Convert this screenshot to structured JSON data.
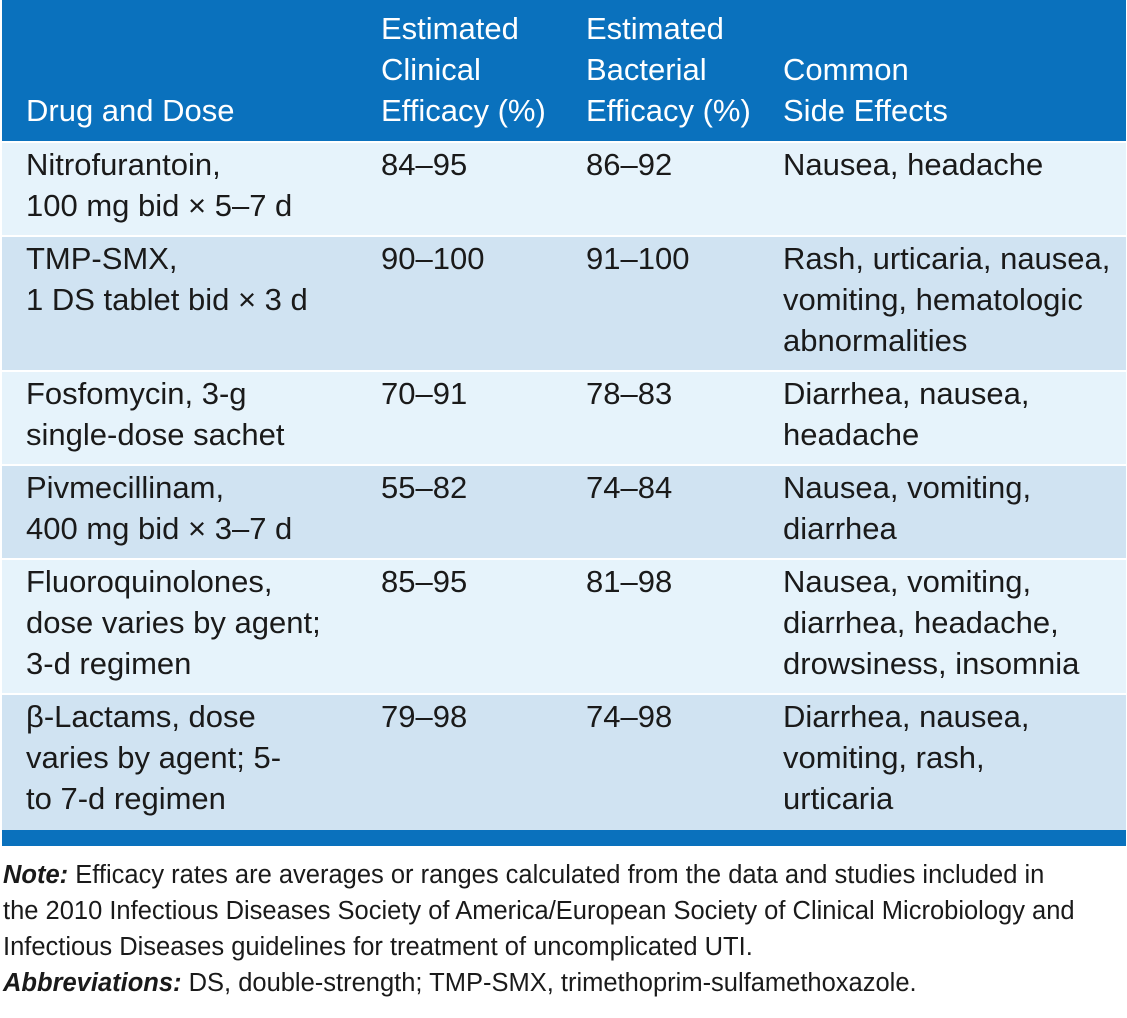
{
  "table": {
    "headers": [
      "Drug and Dose",
      "Estimated Clinical Efficacy (%)",
      "Estimated Bacterial Efficacy (%)",
      "Common Side Effects"
    ],
    "header_lines": {
      "h1": [
        "Drug and Dose"
      ],
      "h2": [
        "Estimated",
        "Clinical",
        "Efficacy (%)"
      ],
      "h3": [
        "Estimated",
        "Bacterial",
        "Efficacy (%)"
      ],
      "h4": [
        "Common",
        "Side Effects"
      ]
    },
    "rows": [
      {
        "drug_lines": [
          "Nitrofurantoin,",
          "100 mg bid × 5–7 d"
        ],
        "clinical": "84–95",
        "bacterial": "86–92",
        "side_lines": [
          "Nausea, headache"
        ]
      },
      {
        "drug_lines": [
          "TMP-SMX,",
          "1 DS tablet bid × 3 d"
        ],
        "clinical": "90–100",
        "bacterial": "91–100",
        "side_lines": [
          "Rash, urticaria, nausea,",
          "vomiting, hematologic",
          "abnormalities"
        ]
      },
      {
        "drug_lines": [
          "Fosfomycin, 3-g",
          "single-dose sachet"
        ],
        "clinical": "70–91",
        "bacterial": "78–83",
        "side_lines": [
          "Diarrhea, nausea,",
          "headache"
        ]
      },
      {
        "drug_lines": [
          "Pivmecillinam,",
          "400 mg bid × 3–7 d"
        ],
        "clinical": "55–82",
        "bacterial": "74–84",
        "side_lines": [
          "Nausea, vomiting,",
          "diarrhea"
        ]
      },
      {
        "drug_lines": [
          "Fluoroquinolones,",
          "dose varies by agent;",
          "3-d regimen"
        ],
        "clinical": "85–95",
        "bacterial": "81–98",
        "side_lines": [
          "Nausea, vomiting,",
          "diarrhea, headache,",
          "drowsiness, insomnia"
        ]
      },
      {
        "drug_lines": [
          "β-Lactams, dose",
          "varies by agent; 5-",
          "to 7-d regimen"
        ],
        "clinical": "79–98",
        "bacterial": "74–98",
        "side_lines": [
          "Diarrhea, nausea,",
          "vomiting, rash,",
          "urticaria"
        ]
      }
    ]
  },
  "note": {
    "label": "Note:",
    "lines": [
      " Efficacy rates are averages or ranges calculated from the data and studies included in",
      "the 2010 Infectious Diseases Society of America/European Society of Clinical Microbiology and",
      "Infectious Diseases guidelines for treatment of uncomplicated UTI."
    ]
  },
  "abbreviations": {
    "label": "Abbreviations:",
    "text": " DS, double-strength; TMP-SMX, trimethoprim-sulfamethoxazole."
  },
  "colors": {
    "header_bg": "#0a71bd",
    "row_light": "#e6f3fb",
    "row_dark": "#d0e3f2",
    "header_text": "#ffffff",
    "body_text": "#1a1a1a"
  }
}
